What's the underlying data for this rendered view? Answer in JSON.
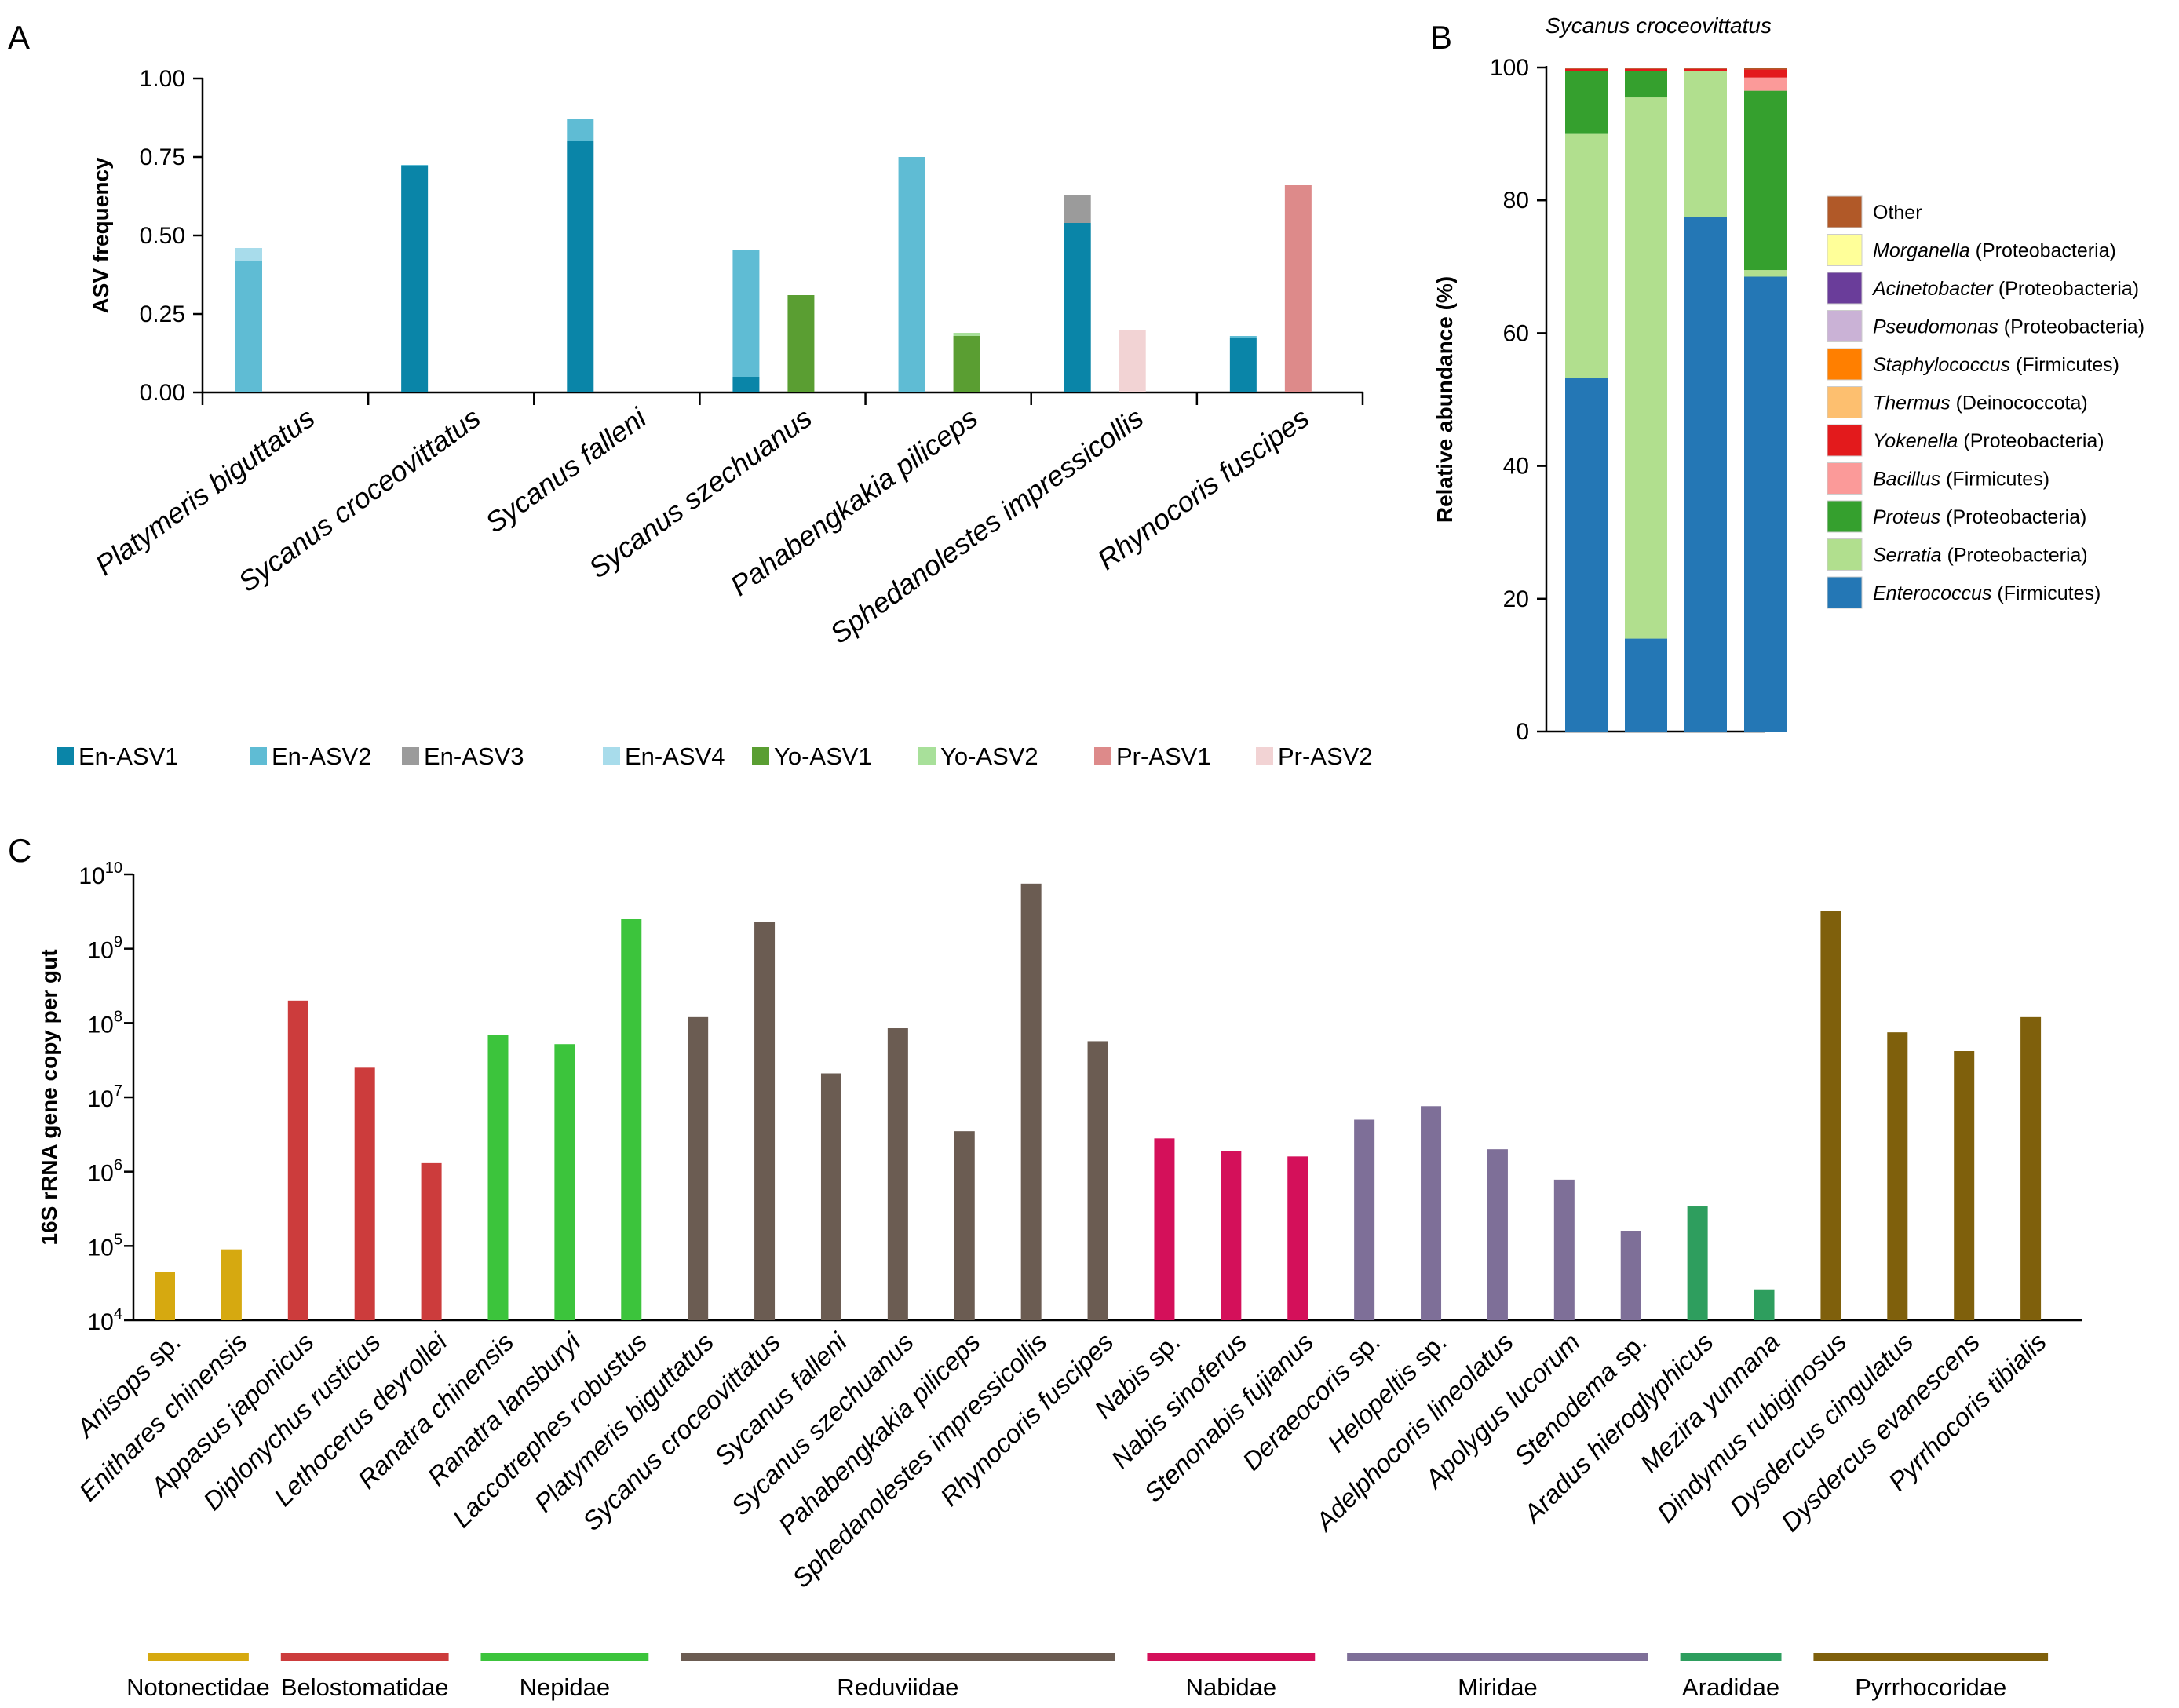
{
  "panels": {
    "a": "A",
    "b": "B",
    "c": "C"
  },
  "colors": {
    "En-ASV1": "#0a85a8",
    "En-ASV2": "#5fbcd4",
    "En-ASV3": "#9b9b9b",
    "En-ASV4": "#a8dceb",
    "Yo-ASV1": "#5a9e32",
    "Yo-ASV2": "#a8e09a",
    "Pr-ASV1": "#dd8a8a",
    "Pr-ASV2": "#f2d3d4"
  },
  "chart_data": [
    {
      "id": "A",
      "type": "bar",
      "ylabel": "ASV frequency",
      "ylim": [
        0,
        1.0
      ],
      "yticks": [
        "0.00",
        "0.25",
        "0.50",
        "0.75",
        "1.00"
      ],
      "categories": [
        "Platymeris biguttatus",
        "Sycanus croceovittatus",
        "Sycanus falleni",
        "Sycanus szechuanus",
        "Pahabengkakia piliceps",
        "Sphedanolestes impressicollis",
        "Rhynocoris fuscipes"
      ],
      "legend": [
        "En-ASV1",
        "En-ASV2",
        "En-ASV3",
        "En-ASV4",
        "Yo-ASV1",
        "Yo-ASV2",
        "Pr-ASV1",
        "Pr-ASV2"
      ],
      "bars": [
        {
          "category": 0,
          "slot": 0,
          "stack": [
            {
              "series": "En-ASV2",
              "value": 0.42
            },
            {
              "series": "En-ASV4",
              "value": 0.04
            }
          ]
        },
        {
          "category": 1,
          "slot": 0,
          "stack": [
            {
              "series": "En-ASV1",
              "value": 0.72
            },
            {
              "series": "En-ASV2",
              "value": 0.005
            }
          ]
        },
        {
          "category": 2,
          "slot": 0,
          "stack": [
            {
              "series": "En-ASV1",
              "value": 0.8
            },
            {
              "series": "En-ASV2",
              "value": 0.07
            }
          ]
        },
        {
          "category": 3,
          "slot": 0,
          "stack": [
            {
              "series": "En-ASV1",
              "value": 0.05
            },
            {
              "series": "En-ASV2",
              "value": 0.405
            }
          ]
        },
        {
          "category": 3,
          "slot": 1,
          "stack": [
            {
              "series": "Yo-ASV1",
              "value": 0.31
            }
          ]
        },
        {
          "category": 4,
          "slot": 0,
          "stack": [
            {
              "series": "En-ASV2",
              "value": 0.75
            }
          ]
        },
        {
          "category": 4,
          "slot": 1,
          "stack": [
            {
              "series": "Yo-ASV1",
              "value": 0.18
            },
            {
              "series": "Yo-ASV2",
              "value": 0.01
            }
          ]
        },
        {
          "category": 5,
          "slot": 0,
          "stack": [
            {
              "series": "En-ASV1",
              "value": 0.54
            },
            {
              "series": "En-ASV3",
              "value": 0.09
            }
          ]
        },
        {
          "category": 5,
          "slot": 1,
          "stack": [
            {
              "series": "Pr-ASV2",
              "value": 0.2
            }
          ]
        },
        {
          "category": 6,
          "slot": 0,
          "stack": [
            {
              "series": "En-ASV1",
              "value": 0.175
            },
            {
              "series": "En-ASV2",
              "value": 0.005
            }
          ]
        },
        {
          "category": 6,
          "slot": 1,
          "stack": [
            {
              "series": "Pr-ASV1",
              "value": 0.66
            }
          ]
        }
      ]
    },
    {
      "id": "B",
      "type": "bar",
      "title": "Sycanus croceovittatus",
      "ylabel": "Relative abundance (%)",
      "ylim": [
        0,
        100
      ],
      "yticks": [
        "0",
        "20",
        "40",
        "60",
        "80",
        "100"
      ],
      "series": [
        {
          "name": "Enterococcus",
          "phylum": "(Firmicutes)",
          "color": "#2477b5",
          "values": [
            53.3,
            14.0,
            77.5,
            68.5
          ]
        },
        {
          "name": "Serratia",
          "phylum": "(Proteobacteria)",
          "color": "#b1df8e",
          "values": [
            36.7,
            81.5,
            22.0,
            1.0
          ]
        },
        {
          "name": "Proteus",
          "phylum": "(Proteobacteria)",
          "color": "#35a02e",
          "values": [
            9.5,
            4.0,
            0.0,
            27.0
          ]
        },
        {
          "name": "Bacillus",
          "phylum": "(Firmicutes)",
          "color": "#fb9a99",
          "values": [
            0.0,
            0.0,
            0.0,
            2.0
          ]
        },
        {
          "name": "Yokenella",
          "phylum": "(Proteobacteria)",
          "color": "#e31a1c",
          "values": [
            0.3,
            0.3,
            0.3,
            1.2
          ]
        },
        {
          "name": "Thermus",
          "phylum": "(Deinococcota)",
          "color": "#fdbf6f",
          "values": [
            0.0,
            0.0,
            0.0,
            0.0
          ]
        },
        {
          "name": "Staphylococcus",
          "phylum": "(Firmicutes)",
          "color": "#ff7f00",
          "values": [
            0.0,
            0.0,
            0.0,
            0.0
          ]
        },
        {
          "name": "Pseudomonas",
          "phylum": "(Proteobacteria)",
          "color": "#cab2d6",
          "values": [
            0.0,
            0.0,
            0.0,
            0.0
          ]
        },
        {
          "name": "Acinetobacter",
          "phylum": "(Proteobacteria)",
          "color": "#6a3d9a",
          "values": [
            0.0,
            0.0,
            0.0,
            0.0
          ]
        },
        {
          "name": "Morganella",
          "phylum": "(Proteobacteria)",
          "color": "#ffff99",
          "values": [
            0.0,
            0.0,
            0.0,
            0.0
          ]
        },
        {
          "name": "Other",
          "phylum": "",
          "color": "#b15928",
          "values": [
            0.2,
            0.2,
            0.2,
            0.3
          ]
        }
      ],
      "legend_order": [
        "Other",
        "Morganella",
        "Acinetobacter",
        "Pseudomonas",
        "Staphylococcus",
        "Thermus",
        "Yokenella",
        "Bacillus",
        "Proteus",
        "Serratia",
        "Enterococcus"
      ]
    },
    {
      "id": "C",
      "type": "bar",
      "yscale": "log",
      "ylabel": "16S rRNA gene copy per gut",
      "ylim": [
        10000,
        10000000000
      ],
      "yticks": [
        {
          "base": "10",
          "exp": "4"
        },
        {
          "base": "10",
          "exp": "5"
        },
        {
          "base": "10",
          "exp": "6"
        },
        {
          "base": "10",
          "exp": "7"
        },
        {
          "base": "10",
          "exp": "8"
        },
        {
          "base": "10",
          "exp": "9"
        },
        {
          "base": "10",
          "exp": "10"
        }
      ],
      "categories": [
        {
          "name": "Anisops",
          "suffix": " sp.",
          "family": 0,
          "value": 45000
        },
        {
          "name": "Enithares chinensis",
          "suffix": "",
          "family": 0,
          "value": 90000
        },
        {
          "name": "Appasus japonicus",
          "suffix": "",
          "family": 1,
          "value": 200000000
        },
        {
          "name": "Diplonychus rusticus",
          "suffix": "",
          "family": 1,
          "value": 25000000
        },
        {
          "name": "Lethocerus deyrollei",
          "suffix": "",
          "family": 1,
          "value": 1300000
        },
        {
          "name": "Ranatra chinensis",
          "suffix": "",
          "family": 2,
          "value": 70000000
        },
        {
          "name": "Ranatra lansburyi",
          "suffix": "",
          "family": 2,
          "value": 52000000
        },
        {
          "name": "Laccotrephes robustus",
          "suffix": "",
          "family": 2,
          "value": 2500000000
        },
        {
          "name": "Platymeris biguttatus",
          "suffix": "",
          "family": 3,
          "value": 120000000
        },
        {
          "name": "Sycanus croceovittatus",
          "suffix": "",
          "family": 3,
          "value": 2300000000
        },
        {
          "name": "Sycanus falleni",
          "suffix": "",
          "family": 3,
          "value": 21000000
        },
        {
          "name": "Sycanus szechuanus",
          "suffix": "",
          "family": 3,
          "value": 85000000
        },
        {
          "name": "Pahabengkakia piliceps",
          "suffix": "",
          "family": 3,
          "value": 3500000
        },
        {
          "name": "Sphedanolestes impressicollis",
          "suffix": "",
          "family": 3,
          "value": 7500000000
        },
        {
          "name": "Rhynocoris fuscipes",
          "suffix": "",
          "family": 3,
          "value": 57000000
        },
        {
          "name": "Nabis",
          "suffix": " sp.",
          "family": 4,
          "value": 2800000
        },
        {
          "name": "Nabis sinoferus",
          "suffix": "",
          "family": 4,
          "value": 1900000
        },
        {
          "name": "Stenonabis fujianus",
          "suffix": "",
          "family": 4,
          "value": 1600000
        },
        {
          "name": "Deraeocoris",
          "suffix": " sp.",
          "family": 5,
          "value": 5000000
        },
        {
          "name": "Helopeltis",
          "suffix": " sp.",
          "family": 5,
          "value": 7600000
        },
        {
          "name": "Adelphocoris lineolatus",
          "suffix": "",
          "family": 5,
          "value": 2000000
        },
        {
          "name": "Apolygus lucorum",
          "suffix": "",
          "family": 5,
          "value": 780000
        },
        {
          "name": "Stenodema",
          "suffix": " sp.",
          "family": 5,
          "value": 160000
        },
        {
          "name": "Aradus hieroglyphicus",
          "suffix": "",
          "family": 6,
          "value": 340000
        },
        {
          "name": "Mezira yunnana",
          "suffix": "",
          "family": 6,
          "value": 26000
        },
        {
          "name": "Dindymus rubiginosus",
          "suffix": "",
          "family": 7,
          "value": 3200000000
        },
        {
          "name": "Dysdercus cingulatus",
          "suffix": "",
          "family": 7,
          "value": 75000000
        },
        {
          "name": "Dysdercus evanescens",
          "suffix": "",
          "family": 7,
          "value": 42000000
        },
        {
          "name": "Pyrrhocoris tibialis",
          "suffix": "",
          "family": 7,
          "value": 120000000
        }
      ],
      "families": [
        {
          "name": "Notonectidae",
          "color": "#d6a910"
        },
        {
          "name": "Belostomatidae",
          "color": "#cc3c3c"
        },
        {
          "name": "Nepidae",
          "color": "#3cc43c"
        },
        {
          "name": "Reduviidae",
          "color": "#6b5c52"
        },
        {
          "name": "Nabidae",
          "color": "#d4105a"
        },
        {
          "name": "Miridae",
          "color": "#7e6f98"
        },
        {
          "name": "Aradidae",
          "color": "#2e9e5e"
        },
        {
          "name": "Pyrrhocoridae",
          "color": "#7f600c"
        }
      ]
    }
  ]
}
